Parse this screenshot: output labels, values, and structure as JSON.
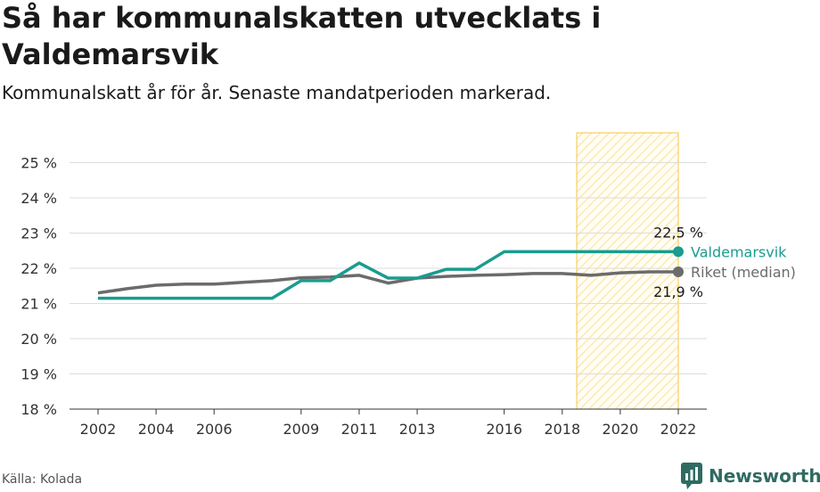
{
  "header": {
    "title": "Så har kommunalskatten utvecklats i Valdemarsvik",
    "subtitle": "Kommunalskatt år för år. Senaste mandatperioden markerad."
  },
  "footer": {
    "source": "Källa: Kolada",
    "brand": "Newsworthy"
  },
  "colors": {
    "valdemarsvik": "#1a9c8f",
    "riket": "#6b6b6b",
    "highlight_stroke": "#f5c542",
    "highlight_fill": "#fde9b0",
    "grid": "#dcdcdc",
    "brand": "#2f6b62"
  },
  "icons": {
    "brand": "bar-chart-speech-bubble-icon"
  },
  "chart_data": {
    "type": "line",
    "title": "Så har kommunalskatten utvecklats i Valdemarsvik",
    "subtitle": "Kommunalskatt år för år. Senaste mandatperioden markerad.",
    "ylim": [
      18,
      25
    ],
    "xlim": [
      2002,
      2022
    ],
    "y_ticks": [
      18,
      19,
      20,
      21,
      22,
      23,
      24,
      25
    ],
    "y_tick_labels": [
      "18 %",
      "19 %",
      "20 %",
      "21 %",
      "22 %",
      "23 %",
      "24 %",
      "25 %"
    ],
    "x_ticks": [
      2002,
      2004,
      2006,
      2009,
      2011,
      2013,
      2016,
      2018,
      2020,
      2022
    ],
    "x_tick_labels": [
      "2002",
      "2004",
      "2006",
      "2009",
      "2011",
      "2013",
      "2016",
      "2018",
      "2020",
      "2022"
    ],
    "grid": "horizontal",
    "highlight_period": [
      2018.5,
      2022
    ],
    "series": [
      {
        "name": "Valdemarsvik",
        "color": "#1a9c8f",
        "end_label": "22,5 %",
        "x": [
          2002,
          2003,
          2004,
          2005,
          2006,
          2007,
          2008,
          2009,
          2010,
          2011,
          2012,
          2013,
          2014,
          2015,
          2016,
          2017,
          2018,
          2019,
          2020,
          2021,
          2022
        ],
        "y": [
          21.15,
          21.15,
          21.15,
          21.15,
          21.15,
          21.15,
          21.15,
          21.65,
          21.65,
          22.15,
          21.72,
          21.72,
          21.97,
          21.97,
          22.47,
          22.47,
          22.47,
          22.47,
          22.47,
          22.47,
          22.47
        ]
      },
      {
        "name": "Riket (median)",
        "color": "#6b6b6b",
        "end_label": "21,9 %",
        "x": [
          2002,
          2003,
          2004,
          2005,
          2006,
          2007,
          2008,
          2009,
          2010,
          2011,
          2012,
          2013,
          2014,
          2015,
          2016,
          2017,
          2018,
          2019,
          2020,
          2021,
          2022
        ],
        "y": [
          21.3,
          21.42,
          21.52,
          21.55,
          21.55,
          21.6,
          21.65,
          21.73,
          21.75,
          21.8,
          21.58,
          21.72,
          21.77,
          21.8,
          21.82,
          21.85,
          21.85,
          21.8,
          21.87,
          21.9,
          21.9
        ]
      }
    ]
  }
}
